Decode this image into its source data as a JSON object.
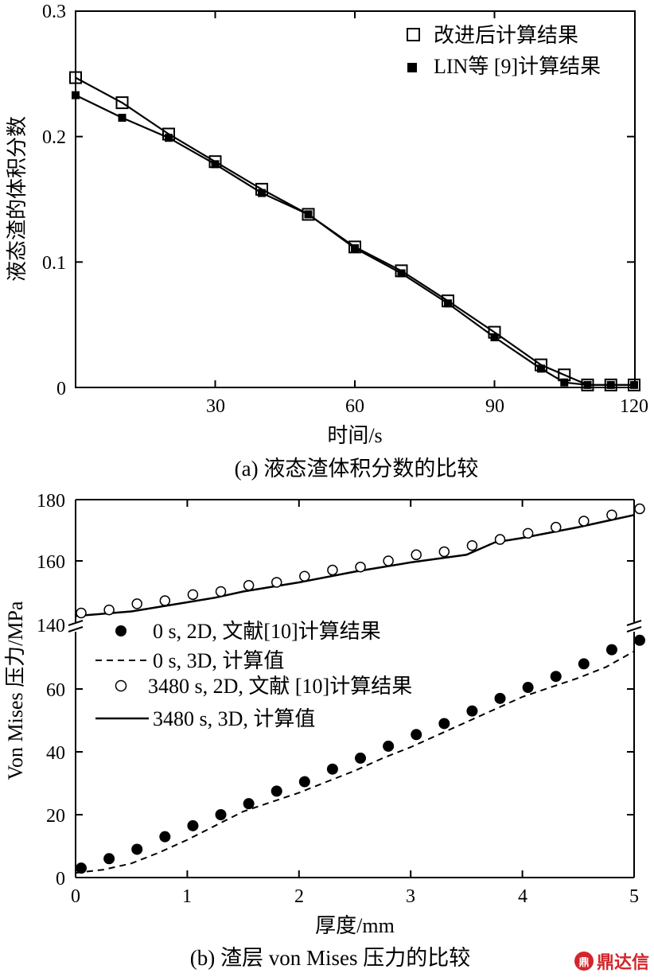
{
  "watermark": "鼎达信",
  "chart_data": [
    {
      "type": "line",
      "caption": "(a) 液态渣体积分数的比较",
      "xlabel": "时间/s",
      "ylabel": "液态渣的体积分数",
      "xlim": [
        0,
        120
      ],
      "ylim": [
        0,
        0.3
      ],
      "xticks": [
        "30",
        "60",
        "90",
        "120"
      ],
      "yticks": [
        "0",
        "0.1",
        "0.2",
        "0.3"
      ],
      "legend_position": "top-right",
      "series": [
        {
          "name": "改进后计算结果",
          "marker": "open-square",
          "line": "solid",
          "x": [
            0,
            10,
            20,
            30,
            40,
            50,
            60,
            70,
            80,
            90,
            100,
            105,
            110,
            115,
            120
          ],
          "y": [
            0.247,
            0.227,
            0.202,
            0.18,
            0.158,
            0.138,
            0.112,
            0.093,
            0.069,
            0.044,
            0.018,
            0.01,
            0.002,
            0.002,
            0.002
          ]
        },
        {
          "name": "LIN等 [9]计算结果",
          "marker": "filled-square",
          "line": "solid",
          "x": [
            0,
            10,
            20,
            30,
            40,
            50,
            60,
            70,
            80,
            90,
            100,
            105,
            110,
            115,
            120
          ],
          "y": [
            0.233,
            0.215,
            0.199,
            0.178,
            0.155,
            0.138,
            0.111,
            0.091,
            0.067,
            0.04,
            0.015,
            0.004,
            0.002,
            0.002,
            0.002
          ]
        }
      ]
    },
    {
      "type": "line",
      "caption": "(b) 渣层 von Mises 压力的比较",
      "xlabel": "厚度/mm",
      "ylabel": "Von Mises 压力/MPa",
      "xlim": [
        0,
        5
      ],
      "ylim": [
        0,
        180
      ],
      "axis_break": [
        75,
        140
      ],
      "xticks": [
        "0",
        "1",
        "2",
        "3",
        "4",
        "5"
      ],
      "yticks": [
        "0",
        "20",
        "40",
        "60",
        "140",
        "160",
        "180"
      ],
      "legend_position": "center-left",
      "series": [
        {
          "name": "0 s, 2D, 文献[10]计算结果",
          "marker": "filled-circle",
          "line": "none",
          "x": [
            0.05,
            0.3,
            0.55,
            0.8,
            1.05,
            1.3,
            1.55,
            1.8,
            2.05,
            2.3,
            2.55,
            2.8,
            3.05,
            3.3,
            3.55,
            3.8,
            4.05,
            4.3,
            4.55,
            4.8,
            5.05
          ],
          "y": [
            3,
            6,
            9,
            13,
            16.5,
            20,
            23.5,
            27.5,
            30.5,
            34.5,
            38,
            41.8,
            45.5,
            49,
            53,
            57,
            60.5,
            64,
            68,
            72.5,
            75.5
          ]
        },
        {
          "name": "0 s, 3D, 计算值",
          "marker": "none",
          "line": "dashed",
          "x": [
            0,
            0.25,
            0.5,
            0.75,
            1,
            1.25,
            1.5,
            1.75,
            2,
            2.25,
            2.5,
            2.75,
            3,
            3.25,
            3.5,
            3.75,
            4,
            4.25,
            4.5,
            4.75,
            5
          ],
          "y": [
            1.5,
            2.5,
            4.5,
            8,
            12,
            16.5,
            21,
            24,
            27,
            30.5,
            34,
            38,
            41.5,
            45.5,
            49.5,
            53.5,
            57.5,
            60.5,
            63.5,
            67,
            72
          ]
        },
        {
          "name": "3480 s, 2D, 文献 [10]计算结果",
          "marker": "open-circle",
          "line": "none",
          "x": [
            0.05,
            0.3,
            0.55,
            0.8,
            1.05,
            1.3,
            1.55,
            1.8,
            2.05,
            2.3,
            2.55,
            2.8,
            3.05,
            3.3,
            3.55,
            3.8,
            4.05,
            4.3,
            4.55,
            4.8,
            5.05
          ],
          "y": [
            143,
            144,
            146,
            147,
            149,
            150,
            152,
            153,
            155,
            157,
            158,
            160,
            162,
            163,
            165,
            167,
            169,
            171,
            173,
            175,
            177
          ]
        },
        {
          "name": "3480 s, 3D, 计算值",
          "marker": "none",
          "line": "solid",
          "x": [
            0,
            0.5,
            1,
            1.25,
            1.5,
            2,
            2.5,
            3,
            3.5,
            3.75,
            4,
            4.5,
            5
          ],
          "y": [
            142,
            143.5,
            146.5,
            148,
            150,
            153,
            156.5,
            159.5,
            162,
            166,
            167.5,
            171,
            175
          ]
        }
      ]
    }
  ]
}
